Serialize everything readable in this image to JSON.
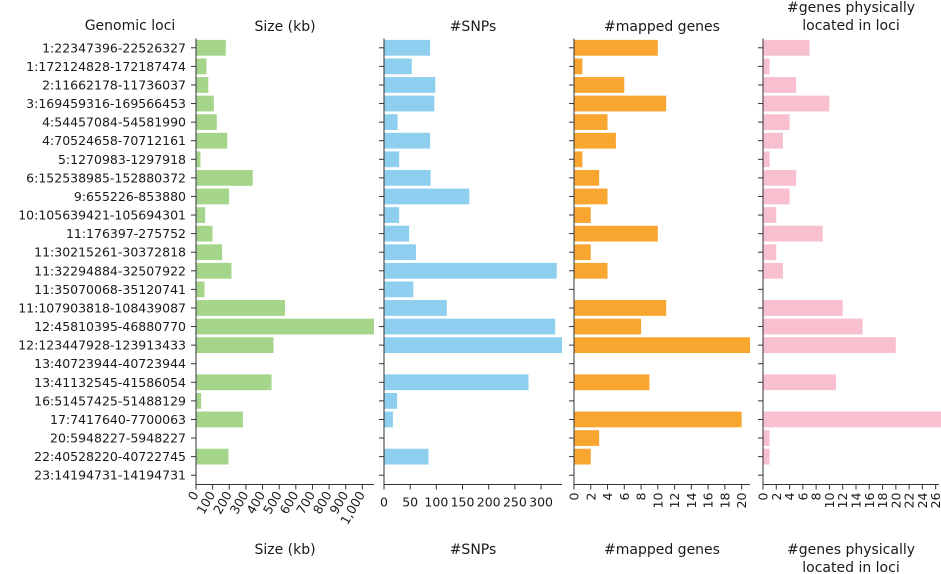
{
  "chart_data": {
    "type": "bar",
    "orientation": "horizontal",
    "category_header": "Genomic loci",
    "categories": [
      "1:22347396-22526327",
      "1:172124828-172187474",
      "2:11662178-11736037",
      "3:169459316-169566453",
      "4:54457084-54581990",
      "4:70524658-70712161",
      "5:1270983-1297918",
      "6:152538985-152880372",
      "9:655226-853880",
      "10:105639421-105694301",
      "11:176397-275752",
      "11:30215261-30372818",
      "11:32294884-32507922",
      "11:35070068-35120741",
      "11:107903818-108439087",
      "12:45810395-46880770",
      "12:123447928-123913433",
      "13:40723944-40723944",
      "13:41132545-41586054",
      "16:51457425-51488129",
      "17:7417640-7700063",
      "20:5948227-5948227",
      "22:40528220-40722745",
      "23:14194731-14194731"
    ],
    "panels": [
      {
        "title": "Size (kb)",
        "xlabel": "Size (kb)",
        "color": "#a5d48b",
        "xlim": [
          0,
          1070
        ],
        "ticks": [
          0,
          100,
          200,
          300,
          400,
          500,
          600,
          700,
          800,
          900,
          1000
        ],
        "tick_labels": [
          "0",
          "100",
          "200",
          "300",
          "400",
          "500",
          "600",
          "700",
          "800",
          "900",
          "1,000"
        ],
        "values": [
          179,
          63,
          74,
          107,
          125,
          188,
          27,
          341,
          199,
          55,
          99,
          157,
          213,
          51,
          535,
          1070,
          466,
          0,
          454,
          31,
          282,
          0,
          195,
          0
        ]
      },
      {
        "title": "#SNPs",
        "xlabel": "#SNPs",
        "color": "#8ecfef",
        "xlim": [
          0,
          340
        ],
        "ticks": [
          0,
          50,
          100,
          150,
          200,
          250,
          300
        ],
        "tick_labels": [
          "0",
          "50",
          "100",
          "150",
          "200",
          "250",
          "300"
        ],
        "values": [
          88,
          53,
          98,
          96,
          26,
          88,
          29,
          89,
          163,
          29,
          48,
          61,
          330,
          56,
          120,
          327,
          340,
          0,
          276,
          25,
          17,
          0,
          85,
          0
        ]
      },
      {
        "title": "#mapped genes",
        "xlabel": "#mapped genes",
        "color": "#f9a631",
        "xlim": [
          0,
          21
        ],
        "ticks": [
          0,
          2,
          4,
          6,
          8,
          10,
          12,
          14,
          16,
          18,
          20
        ],
        "tick_labels": [
          "0",
          "2",
          "4",
          "6",
          "8",
          "10",
          "12",
          "14",
          "16",
          "18",
          "20"
        ],
        "values": [
          10,
          1,
          6,
          11,
          4,
          5,
          1,
          3,
          4,
          2,
          10,
          2,
          4,
          0,
          11,
          8,
          21,
          0,
          9,
          0,
          20,
          3,
          2,
          0
        ]
      },
      {
        "title": [
          "#genes physically",
          "located in loci"
        ],
        "xlabel": [
          "#genes physically",
          "located in loci"
        ],
        "color": "#f8bfcf",
        "xlim": [
          0,
          26.5
        ],
        "ticks": [
          0,
          2,
          4,
          6,
          8,
          10,
          12,
          14,
          16,
          18,
          20,
          22,
          24,
          26
        ],
        "tick_labels": [
          "0",
          "2",
          "4",
          "6",
          "8",
          "10",
          "12",
          "14",
          "16",
          "18",
          "20",
          "22",
          "24",
          "26"
        ],
        "values": [
          7,
          1,
          5,
          10,
          4,
          3,
          1,
          5,
          4,
          2,
          9,
          2,
          3,
          0,
          12,
          15,
          20,
          0,
          11,
          0,
          27,
          1,
          1,
          0
        ]
      }
    ]
  }
}
